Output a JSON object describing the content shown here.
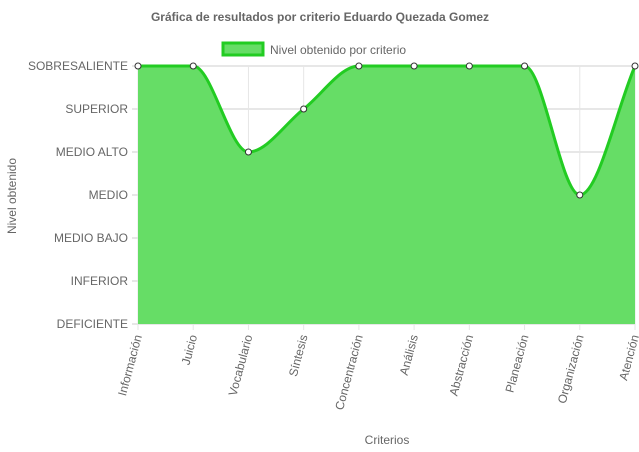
{
  "chart_data": {
    "type": "area",
    "title": "Gráfica de resultados por criterio Eduardo Quezada Gomez",
    "xlabel": "Criterios",
    "ylabel": "Nivel obtenido",
    "levels": [
      "DEFICIENTE",
      "INFERIOR",
      "MEDIO BAJO",
      "MEDIO",
      "MEDIO ALTO",
      "SUPERIOR",
      "SOBRESALIENTE"
    ],
    "categories": [
      "Información",
      "Juicio",
      "Vocabulario",
      "Síntesis",
      "Concentración",
      "Análisis",
      "Abstracción",
      "Planeación",
      "Organización",
      "Atención"
    ],
    "series": [
      {
        "name": "Nivel obtenido por criterio",
        "values": [
          "SOBRESALIENTE",
          "SOBRESALIENTE",
          "MEDIO ALTO",
          "SUPERIOR",
          "SOBRESALIENTE",
          "SOBRESALIENTE",
          "SOBRESALIENTE",
          "SOBRESALIENTE",
          "MEDIO",
          "SOBRESALIENTE"
        ],
        "fill_color": "#66dd66",
        "line_color": "#22cc22"
      }
    ],
    "grid": true,
    "legend_position": "top"
  }
}
